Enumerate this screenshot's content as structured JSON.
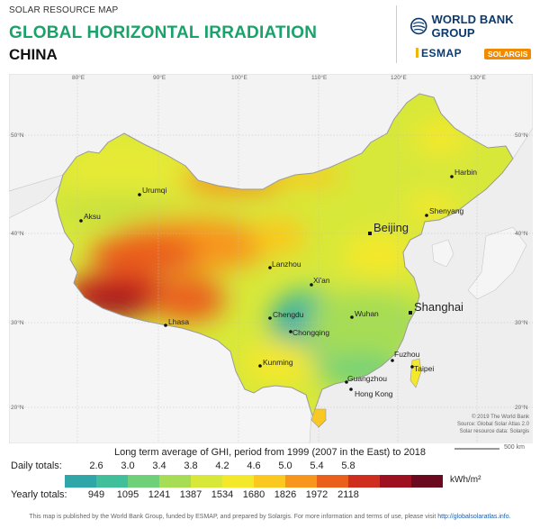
{
  "header": {
    "subtitle": "SOLAR RESOURCE MAP",
    "title": "GLOBAL HORIZONTAL IRRADIATION",
    "country": "CHINA"
  },
  "logos": {
    "wbg": "WORLD BANK GROUP",
    "esmap": "ESMAP",
    "solargis": "SOLARGIS"
  },
  "map": {
    "graticule": {
      "lon_labels": [
        "80°E",
        "90°E",
        "100°E",
        "110°E",
        "120°E",
        "130°E"
      ],
      "lat_labels": [
        "50°N",
        "40°N",
        "30°N",
        "20°N"
      ]
    },
    "cities": [
      {
        "name": "Harbin",
        "size": "small"
      },
      {
        "name": "Urumqi",
        "size": "small"
      },
      {
        "name": "Shenyang",
        "size": "small"
      },
      {
        "name": "Aksu",
        "size": "small"
      },
      {
        "name": "Beijing",
        "size": "large"
      },
      {
        "name": "Lanzhou",
        "size": "small"
      },
      {
        "name": "Xi'an",
        "size": "small"
      },
      {
        "name": "Shanghai",
        "size": "large"
      },
      {
        "name": "Chengdu",
        "size": "small"
      },
      {
        "name": "Wuhan",
        "size": "small"
      },
      {
        "name": "Lhasa",
        "size": "small"
      },
      {
        "name": "Chongqing",
        "size": "small"
      },
      {
        "name": "Fuzhou",
        "size": "small"
      },
      {
        "name": "Kunming",
        "size": "small"
      },
      {
        "name": "Taipei",
        "size": "small"
      },
      {
        "name": "Guangzhou",
        "size": "small"
      },
      {
        "name": "Hong Kong",
        "size": "small"
      }
    ],
    "credits": [
      "© 2019 The World Bank",
      "Source: Global Solar Atlas 2.0",
      "Solar resource data: Solargis"
    ],
    "scale": "500 km"
  },
  "legend": {
    "title": "Long term average of GHI, period from 1999 (2007 in the East) to 2018",
    "daily_label": "Daily totals:",
    "yearly_label": "Yearly totals:",
    "daily_values": [
      "2.6",
      "3.0",
      "3.4",
      "3.8",
      "4.2",
      "4.6",
      "5.0",
      "5.4",
      "5.8"
    ],
    "yearly_values": [
      "949",
      "1095",
      "1241",
      "1387",
      "1534",
      "1680",
      "1826",
      "1972",
      "2118"
    ],
    "unit": "kWh/m²",
    "colors": [
      "#2fa6a8",
      "#3fbf9a",
      "#6fd07a",
      "#a6dd55",
      "#d7e83a",
      "#f4e82a",
      "#fbc81f",
      "#f7951c",
      "#ea5f1a",
      "#cf2d1d",
      "#9e1020",
      "#6b0a1e"
    ]
  },
  "footer": {
    "text": "This map is published by the World Bank Group, funded by ESMAP, and prepared by Solargis. For more information and terms of use, please visit",
    "link": "http://globalsolaratlas.info."
  }
}
